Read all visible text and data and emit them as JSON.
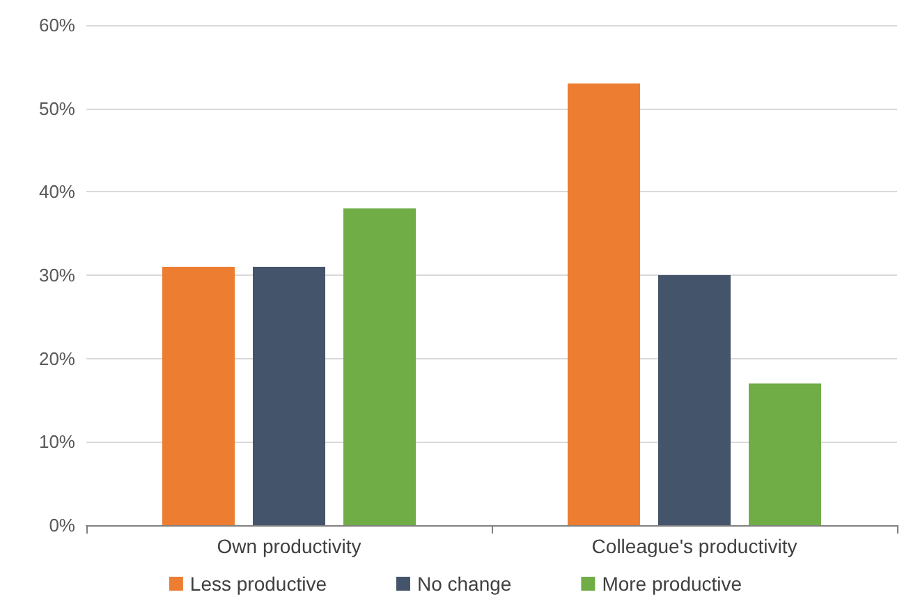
{
  "chart_data": {
    "type": "bar",
    "categories": [
      "Own productivity",
      "Colleague's productivity"
    ],
    "series": [
      {
        "name": "Less productive",
        "color": "#ed7d31",
        "values": [
          31,
          53
        ]
      },
      {
        "name": "No change",
        "color": "#44546a",
        "values": [
          31,
          30
        ]
      },
      {
        "name": "More productive",
        "color": "#70ad47",
        "values": [
          38,
          17
        ]
      }
    ],
    "ylim": [
      0,
      60
    ],
    "yticks": [
      {
        "value": 0,
        "label": "0%"
      },
      {
        "value": 10,
        "label": "10%"
      },
      {
        "value": 20,
        "label": "20%"
      },
      {
        "value": 30,
        "label": "30%"
      },
      {
        "value": 40,
        "label": "40%"
      },
      {
        "value": 50,
        "label": "50%"
      },
      {
        "value": 60,
        "label": "60%"
      }
    ],
    "grid": "y",
    "legend": "bottom"
  }
}
